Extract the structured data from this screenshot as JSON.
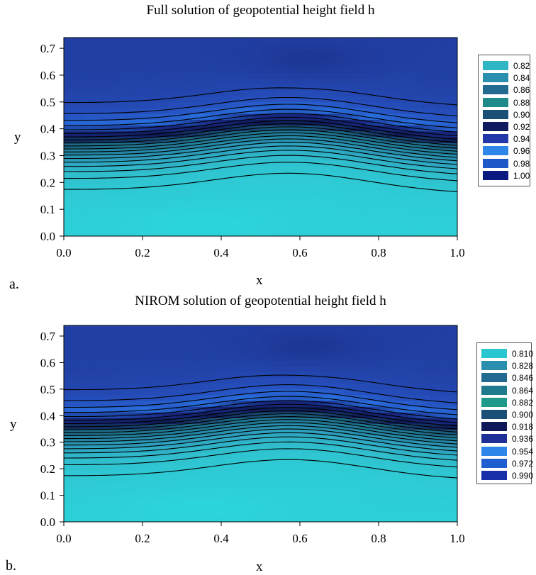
{
  "chart_data": [
    {
      "type": "contour",
      "panel_tag": "a.",
      "title": "Full solution of geopotential height field h",
      "xlabel": "x",
      "ylabel": "y",
      "xlim": [
        0.0,
        1.0
      ],
      "ylim": [
        0.0,
        0.74
      ],
      "x_ticks": [
        "0.0",
        "0.2",
        "0.4",
        "0.6",
        "0.8",
        "1.0"
      ],
      "y_ticks": [
        "0.0",
        "0.1",
        "0.2",
        "0.3",
        "0.4",
        "0.5",
        "0.6",
        "0.7"
      ],
      "legend": [
        {
          "label": "0.82",
          "color": "#2fb6c4"
        },
        {
          "label": "0.84",
          "color": "#2a8fae"
        },
        {
          "label": "0.86",
          "color": "#236a90"
        },
        {
          "label": "0.88",
          "color": "#1f8a8a"
        },
        {
          "label": "0.90",
          "color": "#1a4f78"
        },
        {
          "label": "0.92",
          "color": "#101a5e"
        },
        {
          "label": "0.94",
          "color": "#2237a8"
        },
        {
          "label": "0.96",
          "color": "#2e86e8"
        },
        {
          "label": "0.98",
          "color": "#1e58c8"
        },
        {
          "label": "1.00",
          "color": "#0a1a80"
        }
      ],
      "legend_position": "right"
    },
    {
      "type": "contour",
      "panel_tag": "b.",
      "title": "NIROM solution of geopotential height field h",
      "xlabel": "x",
      "ylabel": "y",
      "xlim": [
        0.0,
        1.0
      ],
      "ylim": [
        0.0,
        0.74
      ],
      "x_ticks": [
        "0.0",
        "0.2",
        "0.4",
        "0.6",
        "0.8",
        "1.0"
      ],
      "y_ticks": [
        "0.0",
        "0.1",
        "0.2",
        "0.3",
        "0.4",
        "0.5",
        "0.6",
        "0.7"
      ],
      "legend": [
        {
          "label": "0.810",
          "color": "#27c6d0"
        },
        {
          "label": "0.828",
          "color": "#2a8fae"
        },
        {
          "label": "0.846",
          "color": "#236a90"
        },
        {
          "label": "0.864",
          "color": "#1f7a8c"
        },
        {
          "label": "0.882",
          "color": "#1f9a8a"
        },
        {
          "label": "0.900",
          "color": "#1a4f78"
        },
        {
          "label": "0.918",
          "color": "#0e1858"
        },
        {
          "label": "0.936",
          "color": "#1e2f98"
        },
        {
          "label": "0.954",
          "color": "#2e86e8"
        },
        {
          "label": "0.972",
          "color": "#1e5ed0"
        },
        {
          "label": "0.990",
          "color": "#1a2ea8"
        }
      ],
      "legend_position": "right"
    }
  ]
}
